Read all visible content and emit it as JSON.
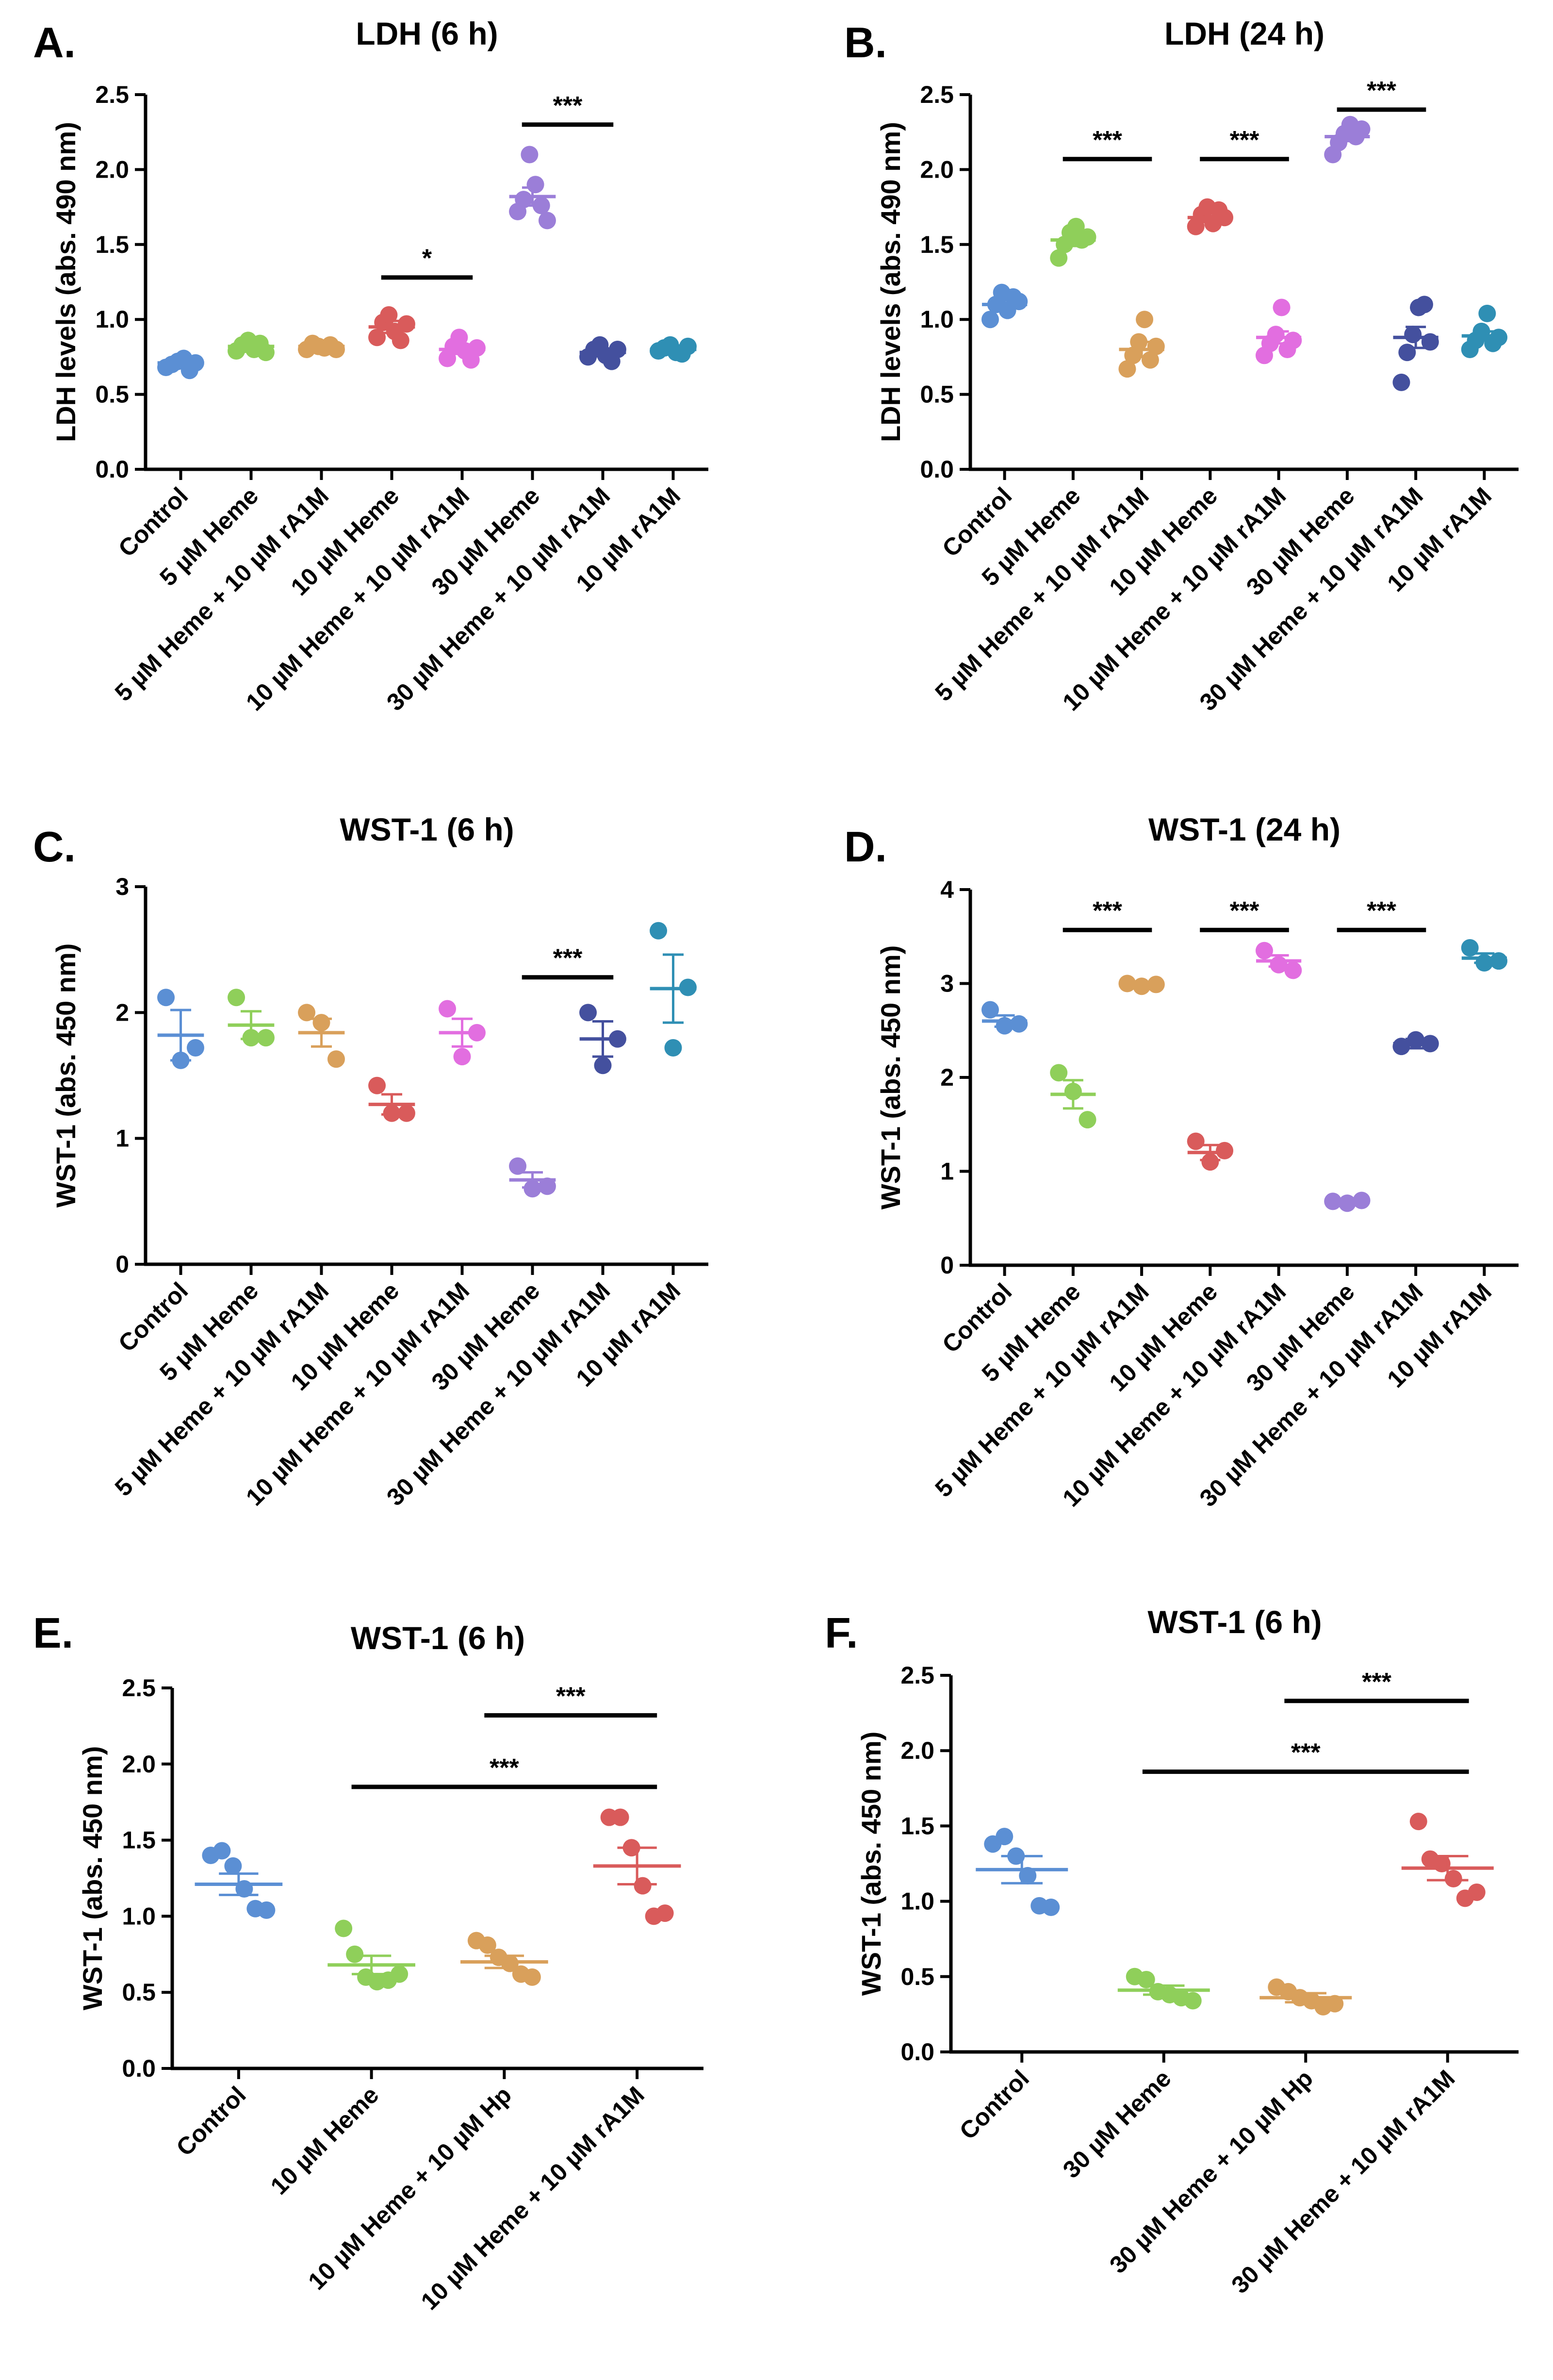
{
  "chart_data": [
    {
      "panel": "A.",
      "type": "scatter",
      "title": "LDH (6 h)",
      "ylabel": "LDH levels (abs. 490 nm)",
      "xlabel": "",
      "ylim": [
        0,
        2.5
      ],
      "yticks": [
        0.0,
        0.5,
        1.0,
        1.5,
        2.0,
        2.5
      ],
      "yticklabels": [
        "0.0",
        "0.5",
        "1.0",
        "1.5",
        "2.0",
        "2.5"
      ],
      "categories": [
        "Control",
        "5 µM Heme",
        "5 µM Heme + 10 µM rA1M",
        "10 µM Heme",
        "10 µM Heme + 10 µM rA1M",
        "30 µM Heme",
        "30 µM Heme + 10 µM rA1M",
        "10 µM rA1M"
      ],
      "colors": [
        "#5b8fd4",
        "#8fcf5a",
        "#d9a05b",
        "#d95b5b",
        "#e26ee0",
        "#9b7ed8",
        "#44509e",
        "#2f8fb4"
      ],
      "means": [
        0.71,
        0.82,
        0.82,
        0.95,
        0.8,
        1.82,
        0.78,
        0.8
      ],
      "sems": [
        0.02,
        0.02,
        0.01,
        0.04,
        0.03,
        0.06,
        0.02,
        0.01
      ],
      "points": [
        [
          0.68,
          0.7,
          0.72,
          0.74,
          0.66,
          0.71
        ],
        [
          0.79,
          0.83,
          0.86,
          0.8,
          0.84,
          0.78
        ],
        [
          0.8,
          0.84,
          0.82,
          0.81,
          0.83,
          0.8
        ],
        [
          0.88,
          0.98,
          1.03,
          0.92,
          0.86,
          0.97
        ],
        [
          0.74,
          0.82,
          0.88,
          0.79,
          0.73,
          0.81
        ],
        [
          1.72,
          1.8,
          2.1,
          1.9,
          1.76,
          1.66
        ],
        [
          0.75,
          0.8,
          0.83,
          0.76,
          0.72,
          0.8
        ],
        [
          0.79,
          0.81,
          0.83,
          0.78,
          0.77,
          0.82
        ]
      ],
      "significance": [
        {
          "from": 3,
          "to": 4,
          "y": 1.28,
          "label": "*"
        },
        {
          "from": 5,
          "to": 6,
          "y": 2.3,
          "label": "***"
        }
      ]
    },
    {
      "panel": "B.",
      "type": "scatter",
      "title": "LDH (24 h)",
      "ylabel": "LDH levels (abs. 490 nm)",
      "xlabel": "",
      "ylim": [
        0,
        2.5
      ],
      "yticks": [
        0.0,
        0.5,
        1.0,
        1.5,
        2.0,
        2.5
      ],
      "yticklabels": [
        "0.0",
        "0.5",
        "1.0",
        "1.5",
        "2.0",
        "2.5"
      ],
      "categories": [
        "Control",
        "5 µM Heme",
        "5 µM Heme + 10 µM rA1M",
        "10 µM Heme",
        "10 µM Heme + 10 µM rA1M",
        "30 µM Heme",
        "30 µM Heme + 10 µM rA1M",
        "10 µM rA1M"
      ],
      "colors": [
        "#5b8fd4",
        "#8fcf5a",
        "#d9a05b",
        "#d95b5b",
        "#e26ee0",
        "#9b7ed8",
        "#44509e",
        "#2f8fb4"
      ],
      "means": [
        1.1,
        1.53,
        0.8,
        1.68,
        0.88,
        2.22,
        0.88,
        0.89
      ],
      "sems": [
        0.03,
        0.04,
        0.05,
        0.03,
        0.04,
        0.03,
        0.07,
        0.03
      ],
      "points": [
        [
          1.0,
          1.1,
          1.18,
          1.06,
          1.15,
          1.12
        ],
        [
          1.41,
          1.5,
          1.58,
          1.62,
          1.53,
          1.55
        ],
        [
          0.67,
          0.76,
          0.85,
          1.0,
          0.73,
          0.82
        ],
        [
          1.62,
          1.7,
          1.75,
          1.64,
          1.73,
          1.68
        ],
        [
          0.76,
          0.84,
          0.9,
          1.08,
          0.8,
          0.86
        ],
        [
          2.1,
          2.18,
          2.24,
          2.3,
          2.22,
          2.27
        ],
        [
          0.58,
          0.78,
          0.9,
          1.08,
          1.1,
          0.85
        ],
        [
          0.8,
          0.86,
          0.92,
          1.04,
          0.84,
          0.88
        ]
      ],
      "significance": [
        {
          "from": 1,
          "to": 2,
          "y": 2.07,
          "label": "***"
        },
        {
          "from": 3,
          "to": 4,
          "y": 2.07,
          "label": "***"
        },
        {
          "from": 5,
          "to": 6,
          "y": 2.4,
          "label": "***"
        }
      ]
    },
    {
      "panel": "C.",
      "type": "scatter",
      "title": "WST-1 (6 h)",
      "ylabel": "WST-1 (abs. 450 nm)",
      "xlabel": "",
      "ylim": [
        0,
        3
      ],
      "yticks": [
        0,
        1,
        2,
        3
      ],
      "yticklabels": [
        "0",
        "1",
        "2",
        "3"
      ],
      "categories": [
        "Control",
        "5 µM Heme",
        "5 µM Heme + 10 µM rA1M",
        "10 µM Heme",
        "10 µM Heme + 10 µM rA1M",
        "30 µM Heme",
        "30 µM Heme + 10 µM rA1M",
        "10 µM rA1M"
      ],
      "colors": [
        "#5b8fd4",
        "#8fcf5a",
        "#d9a05b",
        "#d95b5b",
        "#e26ee0",
        "#9b7ed8",
        "#44509e",
        "#2f8fb4"
      ],
      "means": [
        1.82,
        1.9,
        1.84,
        1.27,
        1.84,
        0.67,
        1.79,
        2.19
      ],
      "sems": [
        0.2,
        0.11,
        0.11,
        0.08,
        0.11,
        0.06,
        0.14,
        0.27
      ],
      "points": [
        [
          2.12,
          1.62,
          1.72
        ],
        [
          2.12,
          1.8,
          1.8
        ],
        [
          2.0,
          1.92,
          1.63
        ],
        [
          1.42,
          1.2,
          1.2
        ],
        [
          2.03,
          1.65,
          1.84
        ],
        [
          0.78,
          0.6,
          0.62
        ],
        [
          2.0,
          1.58,
          1.79
        ],
        [
          2.65,
          1.72,
          2.2
        ]
      ],
      "significance": [
        {
          "from": 5,
          "to": 6,
          "y": 2.28,
          "label": "***"
        }
      ]
    },
    {
      "panel": "D.",
      "type": "scatter",
      "title": "WST-1 (24 h)",
      "ylabel": "WST-1 (abs. 450 nm)",
      "xlabel": "",
      "ylim": [
        0,
        4
      ],
      "yticks": [
        0,
        1,
        2,
        3,
        4
      ],
      "yticklabels": [
        "0",
        "1",
        "2",
        "3",
        "4"
      ],
      "categories": [
        "Control",
        "5 µM Heme",
        "5 µM Heme + 10 µM rA1M",
        "10 µM Heme",
        "10 µM Heme + 10 µM rA1M",
        "30 µM Heme",
        "30 µM Heme + 10 µM rA1M",
        "10 µM rA1M"
      ],
      "colors": [
        "#5b8fd4",
        "#8fcf5a",
        "#d9a05b",
        "#d95b5b",
        "#e26ee0",
        "#9b7ed8",
        "#44509e",
        "#2f8fb4"
      ],
      "means": [
        2.6,
        1.82,
        2.98,
        1.2,
        3.24,
        0.67,
        2.36,
        3.27
      ],
      "sems": [
        0.06,
        0.15,
        0.03,
        0.08,
        0.06,
        0.02,
        0.05,
        0.05
      ],
      "points": [
        [
          2.72,
          2.55,
          2.57
        ],
        [
          2.05,
          1.85,
          1.55
        ],
        [
          3.0,
          2.97,
          2.99
        ],
        [
          1.32,
          1.1,
          1.22
        ],
        [
          3.35,
          3.2,
          3.14
        ],
        [
          0.68,
          0.66,
          0.69
        ],
        [
          2.33,
          2.4,
          2.36
        ],
        [
          3.38,
          3.22,
          3.24
        ]
      ],
      "significance": [
        {
          "from": 1,
          "to": 2,
          "y": 3.57,
          "label": "***"
        },
        {
          "from": 3,
          "to": 4,
          "y": 3.57,
          "label": "***"
        },
        {
          "from": 5,
          "to": 6,
          "y": 3.57,
          "label": "***"
        }
      ]
    },
    {
      "panel": "E.",
      "type": "scatter",
      "title": "WST-1 (6 h)",
      "ylabel": "WST-1 (abs. 450 nm)",
      "xlabel": "",
      "ylim": [
        0,
        2.5
      ],
      "yticks": [
        0.0,
        0.5,
        1.0,
        1.5,
        2.0,
        2.5
      ],
      "yticklabels": [
        "0.0",
        "0.5",
        "1.0",
        "1.5",
        "2.0",
        "2.5"
      ],
      "categories": [
        "Control",
        "10 µM Heme",
        "10 µM Heme + 10 µM Hp",
        "10 µM Heme + 10 µM rA1M"
      ],
      "colors": [
        "#5b8fd4",
        "#8fcf5a",
        "#d9a05b",
        "#d95b5b"
      ],
      "means": [
        1.21,
        0.68,
        0.7,
        1.33
      ],
      "sems": [
        0.07,
        0.06,
        0.04,
        0.12
      ],
      "points": [
        [
          1.4,
          1.43,
          1.33,
          1.18,
          1.05,
          1.04
        ],
        [
          0.92,
          0.75,
          0.6,
          0.57,
          0.58,
          0.62
        ],
        [
          0.84,
          0.81,
          0.73,
          0.69,
          0.62,
          0.6
        ],
        [
          1.65,
          1.65,
          1.45,
          1.2,
          1.0,
          1.02
        ]
      ],
      "significance": [
        {
          "from": 2,
          "to": 3,
          "y": 2.32,
          "label": "***"
        },
        {
          "from": 1,
          "to": 3,
          "y": 1.85,
          "label": "***"
        }
      ]
    },
    {
      "panel": "F.",
      "type": "scatter",
      "title": "WST-1 (6 h)",
      "ylabel": "WST-1 (abs. 450 nm)",
      "xlabel": "",
      "ylim": [
        0,
        2.5
      ],
      "yticks": [
        0.0,
        0.5,
        1.0,
        1.5,
        2.0,
        2.5
      ],
      "yticklabels": [
        "0.0",
        "0.5",
        "1.0",
        "1.5",
        "2.0",
        "2.5"
      ],
      "categories": [
        "Control",
        "30 µM Heme",
        "30 µM Heme + 10 µM Hp",
        "30 µM Heme + 10 µM rA1M"
      ],
      "colors": [
        "#5b8fd4",
        "#8fcf5a",
        "#d9a05b",
        "#d95b5b"
      ],
      "means": [
        1.21,
        0.41,
        0.36,
        1.22
      ],
      "sems": [
        0.09,
        0.03,
        0.03,
        0.08
      ],
      "points": [
        [
          1.38,
          1.43,
          1.3,
          1.17,
          0.97,
          0.96
        ],
        [
          0.5,
          0.48,
          0.4,
          0.38,
          0.36,
          0.34
        ],
        [
          0.43,
          0.4,
          0.36,
          0.34,
          0.3,
          0.32
        ],
        [
          1.53,
          1.28,
          1.25,
          1.15,
          1.02,
          1.06
        ]
      ],
      "significance": [
        {
          "from": 2,
          "to": 3,
          "y": 2.33,
          "label": "***"
        },
        {
          "from": 1,
          "to": 3,
          "y": 1.86,
          "label": "***"
        }
      ]
    }
  ]
}
